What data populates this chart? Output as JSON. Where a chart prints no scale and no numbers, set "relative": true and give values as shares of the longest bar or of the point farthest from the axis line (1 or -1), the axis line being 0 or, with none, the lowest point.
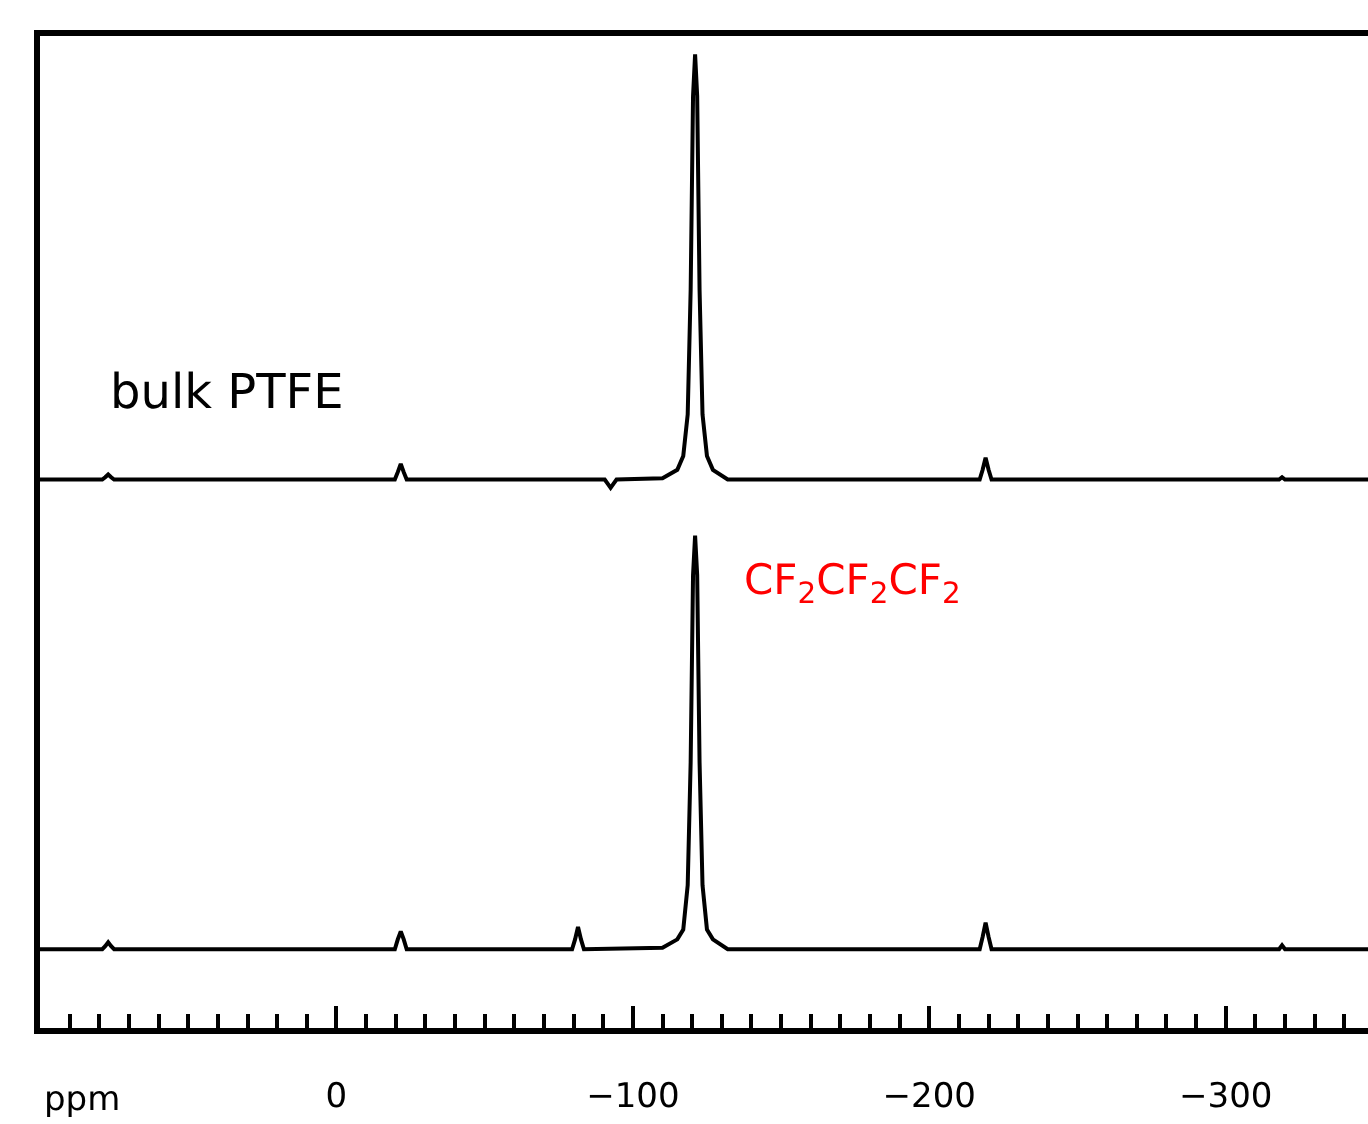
{
  "chart_data": [
    {
      "type": "line",
      "relative": true,
      "xlim": [
        100,
        -348
      ],
      "tick_labels": false,
      "series": [
        {
          "name": "bulk PTFE",
          "color": "#000000",
          "x": [
            100,
            79,
            78,
            77,
            76,
            75,
            -19.7,
            -20.7,
            -21.7,
            -22.7,
            -23.7,
            -90.5,
            -91.5,
            -92.5,
            -93.5,
            -94.5,
            -110,
            -115,
            -117,
            -118.5,
            -119.5,
            -120.3,
            -121,
            -121.7,
            -122.5,
            -123.5,
            -125,
            -127,
            -132,
            -217,
            -218,
            -219,
            -220,
            -221,
            -318,
            -319,
            -320,
            -348
          ],
          "values": [
            0.079,
            0.079,
            0.084,
            0.09,
            0.084,
            0.079,
            0.079,
            0.095,
            0.113,
            0.095,
            0.079,
            0.079,
            0.07,
            0.061,
            0.07,
            0.079,
            0.082,
            0.1,
            0.13,
            0.22,
            0.49,
            0.91,
            1,
            0.91,
            0.49,
            0.22,
            0.13,
            0.1,
            0.079,
            0.079,
            0.1,
            0.126,
            0.1,
            0.079,
            0.079,
            0.084,
            0.079,
            0.079
          ]
        }
      ]
    },
    {
      "type": "line",
      "relative": true,
      "xlim": [
        100,
        -348
      ],
      "tick_labels": "x",
      "xlabel": "ppm",
      "xticks": [
        {
          "value": 100,
          "label": null
        },
        {
          "value": 90,
          "label": null
        },
        {
          "value": 80,
          "label": null
        },
        {
          "value": 70,
          "label": null
        },
        {
          "value": 60,
          "label": null
        },
        {
          "value": 50,
          "label": null
        },
        {
          "value": 40,
          "label": null
        },
        {
          "value": 30,
          "label": null
        },
        {
          "value": 20,
          "label": null
        },
        {
          "value": 10,
          "label": null
        },
        0,
        {
          "value": -10,
          "label": null
        },
        {
          "value": -20,
          "label": null
        },
        {
          "value": -30,
          "label": null
        },
        {
          "value": -40,
          "label": null
        },
        {
          "value": -50,
          "label": null
        },
        {
          "value": -60,
          "label": null
        },
        {
          "value": -70,
          "label": null
        },
        {
          "value": -80,
          "label": null
        },
        {
          "value": -90,
          "label": null
        },
        {
          "value": -100,
          "label": "−100"
        },
        {
          "value": -110,
          "label": null
        },
        {
          "value": -120,
          "label": null
        },
        {
          "value": -130,
          "label": null
        },
        {
          "value": -140,
          "label": null
        },
        {
          "value": -150,
          "label": null
        },
        {
          "value": -160,
          "label": null
        },
        {
          "value": -170,
          "label": null
        },
        {
          "value": -180,
          "label": null
        },
        {
          "value": -190,
          "label": null
        },
        {
          "value": -200,
          "label": "−200"
        },
        {
          "value": -210,
          "label": null
        },
        {
          "value": -220,
          "label": null
        },
        {
          "value": -230,
          "label": null
        },
        {
          "value": -240,
          "label": null
        },
        {
          "value": -250,
          "label": null
        },
        {
          "value": -260,
          "label": null
        },
        {
          "value": -270,
          "label": null
        },
        {
          "value": -280,
          "label": null
        },
        {
          "value": -290,
          "label": null
        },
        {
          "value": -300,
          "label": "−300"
        },
        {
          "value": -310,
          "label": null
        },
        {
          "value": -320,
          "label": null
        },
        {
          "value": -330,
          "label": null
        },
        {
          "value": -340,
          "label": null
        }
      ],
      "annotations": [
        {
          "text": "CF$_{2}$CF$_{2}$CF$_{2}$",
          "x": -121,
          "y": 1
        }
      ],
      "series": [
        {
          "color": "#000000",
          "x": [
            100,
            79,
            78,
            77,
            76,
            75,
            -19.7,
            -20.7,
            -21.7,
            -22.7,
            -23.7,
            -79.5,
            -80.5,
            -81.5,
            -82.5,
            -83.5,
            -110,
            -115,
            -117,
            -118.5,
            -119.5,
            -120.3,
            -121,
            -121.7,
            -122.5,
            -123.5,
            -125,
            -127,
            -132,
            -217,
            -218,
            -219,
            -220,
            -221,
            -318,
            -319,
            -320,
            -348
          ],
          "values": [
            0.16,
            0.16,
            0.166,
            0.174,
            0.166,
            0.16,
            0.16,
            0.18,
            0.196,
            0.18,
            0.16,
            0.16,
            0.18,
            0.205,
            0.18,
            0.16,
            0.163,
            0.18,
            0.2,
            0.29,
            0.54,
            0.92,
            1,
            0.92,
            0.54,
            0.29,
            0.2,
            0.18,
            0.16,
            0.16,
            0.185,
            0.214,
            0.185,
            0.16,
            0.16,
            0.168,
            0.16,
            0.16
          ]
        }
      ]
    }
  ]
}
